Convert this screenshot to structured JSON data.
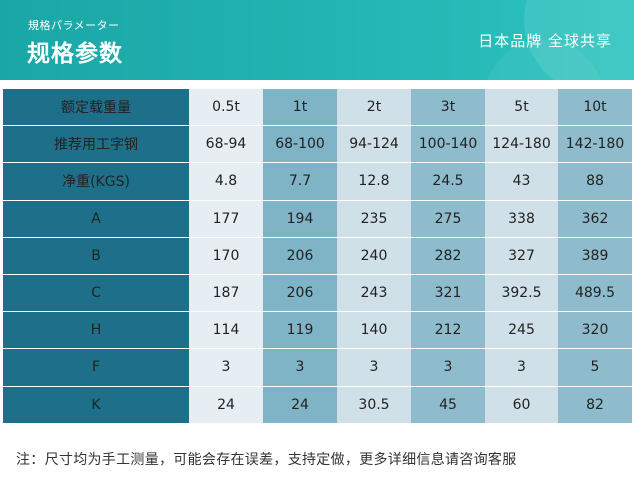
{
  "header": {
    "subtitle": "規格パラメーター",
    "title": "规格参数",
    "brand": "日本品牌 全球共享",
    "colors": {
      "banner": "#1aa6a6",
      "label_column": "#1e6f8a"
    }
  },
  "table": {
    "rows": [
      {
        "label": "额定载重量",
        "cells": [
          "0.5t",
          "1t",
          "2t",
          "3t",
          "5t",
          "10t"
        ]
      },
      {
        "label": "推荐用工字钢",
        "cells": [
          "68-94",
          "68-100",
          "94-124",
          "100-140",
          "124-180",
          "142-180"
        ]
      },
      {
        "label": "净重(KGS)",
        "cells": [
          "4.8",
          "7.7",
          "12.8",
          "24.5",
          "43",
          "88"
        ]
      },
      {
        "label": "A",
        "cells": [
          "177",
          "194",
          "235",
          "275",
          "338",
          "362"
        ]
      },
      {
        "label": "B",
        "cells": [
          "170",
          "206",
          "240",
          "282",
          "327",
          "389"
        ]
      },
      {
        "label": "C",
        "cells": [
          "187",
          "206",
          "243",
          "321",
          "392.5",
          "489.5"
        ]
      },
      {
        "label": "H",
        "cells": [
          "114",
          "119",
          "140",
          "212",
          "245",
          "320"
        ]
      },
      {
        "label": "F",
        "cells": [
          "3",
          "3",
          "3",
          "3",
          "3",
          "5"
        ]
      },
      {
        "label": "K",
        "cells": [
          "24",
          "24",
          "30.5",
          "45",
          "60",
          "82"
        ]
      }
    ]
  },
  "footer": {
    "note": "注：尺寸均为手工测量，可能会存在误差，支持定做，更多详细信息请咨询客服"
  }
}
